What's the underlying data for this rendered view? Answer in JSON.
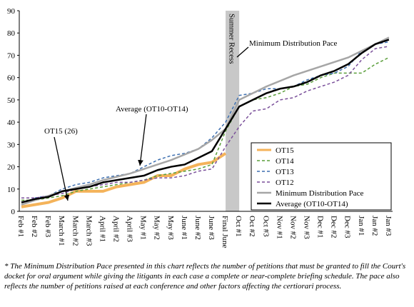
{
  "chart_data": {
    "type": "line",
    "categories": [
      "Feb #1",
      "Feb #2",
      "Feb #3",
      "March #1",
      "March #2",
      "March #3",
      "April #1",
      "April #2",
      "April #3",
      "May #1",
      "May #2",
      "May #3",
      "June #1",
      "June #2",
      "June #3",
      "Final June",
      "Oct #1",
      "Oct #2",
      "Oct #3",
      "Nov #1",
      "Nov #2",
      "Nov #3",
      "Dec #1",
      "Dec #2",
      "Dec #3",
      "Jan #1",
      "Jan #2",
      "Jan #3"
    ],
    "series": [
      {
        "name": "OT15",
        "color": "#f4b35a",
        "width": 4,
        "dashed": false,
        "values": [
          2,
          3,
          4,
          6,
          9,
          9,
          9,
          11,
          12,
          13,
          16,
          16,
          19,
          21,
          22,
          26,
          null,
          null,
          null,
          null,
          null,
          null,
          null,
          null,
          null,
          null,
          null,
          null
        ]
      },
      {
        "name": "OT14",
        "color": "#5a9e3a",
        "width": 1.5,
        "dashed": true,
        "values": [
          5,
          5,
          6,
          7,
          9,
          10,
          11,
          12,
          13,
          14,
          16,
          17,
          18,
          19,
          21,
          36,
          47,
          50,
          51,
          53,
          56,
          57,
          60,
          62,
          62,
          62,
          66,
          69
        ]
      },
      {
        "name": "OT13",
        "color": "#3d6fb0",
        "width": 1.5,
        "dashed": true,
        "values": [
          3,
          6,
          7,
          10,
          12,
          13,
          15,
          16,
          17,
          20,
          23,
          25,
          26,
          28,
          33,
          40,
          52,
          53,
          55,
          55,
          56,
          59,
          61,
          62,
          65,
          72,
          75,
          76
        ]
      },
      {
        "name": "OT12",
        "color": "#7a4f9a",
        "width": 1.5,
        "dashed": true,
        "values": [
          6,
          6,
          7,
          8,
          10,
          11,
          12,
          13,
          13,
          14,
          15,
          15,
          16,
          18,
          19,
          29,
          38,
          45,
          46,
          50,
          51,
          54,
          56,
          58,
          61,
          68,
          73,
          74
        ]
      },
      {
        "name": "Minimum Distribution Pace",
        "color": "#a6a6a6",
        "width": 2.5,
        "dashed": false,
        "values": [
          3,
          5,
          7,
          9,
          10.5,
          12,
          14,
          15.5,
          17,
          19,
          21,
          23,
          25.5,
          28,
          32,
          37,
          50,
          53,
          56,
          58.5,
          61,
          63,
          65,
          67,
          69,
          72,
          75,
          78
        ]
      },
      {
        "name": "Average (OT10-OT14)",
        "color": "#000000",
        "width": 2.5,
        "dashed": false,
        "values": [
          4,
          5.5,
          6.5,
          9,
          10,
          11,
          13,
          14,
          15,
          16,
          18.5,
          20,
          21,
          24,
          27,
          37,
          47,
          50,
          53,
          55,
          56,
          58,
          61,
          63,
          66,
          71,
          75,
          77
        ]
      }
    ],
    "band": {
      "label": "Summer Recess",
      "from": "Final June",
      "to": "Oct #1",
      "color": "#c8c8c8"
    },
    "annotations": [
      "Minimum Distribution Pace",
      "Average (OT10-OT14)",
      "OT15 (26)"
    ],
    "ylim": [
      0,
      90
    ],
    "yticks": [
      0,
      10,
      20,
      30,
      40,
      50,
      60,
      70,
      80,
      90
    ],
    "grid": false,
    "legend": "lower right",
    "footnote": "* The Minimum Distribution Pace presented in this chart reflects the number of petitions that must be granted to fill the Court's docket for oral argument while giving the litigants in each case a complete or near-complete briefing schedule. The pace also reflects the number of petitions raised at each conference and other factors affecting the certiorari process."
  }
}
